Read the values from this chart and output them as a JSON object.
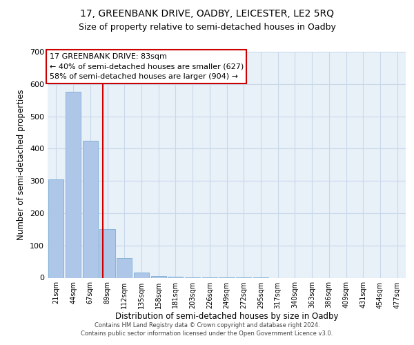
{
  "title": "17, GREENBANK DRIVE, OADBY, LEICESTER, LE2 5RQ",
  "subtitle": "Size of property relative to semi-detached houses in Oadby",
  "xlabel": "Distribution of semi-detached houses by size in Oadby",
  "ylabel": "Number of semi-detached properties",
  "categories": [
    "21sqm",
    "44sqm",
    "67sqm",
    "89sqm",
    "112sqm",
    "135sqm",
    "158sqm",
    "181sqm",
    "203sqm",
    "226sqm",
    "249sqm",
    "272sqm",
    "295sqm",
    "317sqm",
    "340sqm",
    "363sqm",
    "386sqm",
    "409sqm",
    "431sqm",
    "454sqm",
    "477sqm"
  ],
  "values": [
    305,
    575,
    425,
    150,
    60,
    15,
    5,
    3,
    2,
    1,
    1,
    1,
    1,
    0,
    0,
    0,
    0,
    0,
    0,
    0,
    0
  ],
  "bar_color": "#aec6e8",
  "bar_edge_color": "#7aadd4",
  "grid_color": "#c8d8ea",
  "bg_color": "#e8f0f8",
  "vline_x": 2.75,
  "vline_color": "#cc0000",
  "annotation_text": "17 GREENBANK DRIVE: 83sqm\n← 40% of semi-detached houses are smaller (627)\n58% of semi-detached houses are larger (904) →",
  "annotation_box_color": "#cc0000",
  "ylim": [
    0,
    700
  ],
  "yticks": [
    0,
    100,
    200,
    300,
    400,
    500,
    600,
    700
  ],
  "footer": "Contains HM Land Registry data © Crown copyright and database right 2024.\nContains public sector information licensed under the Open Government Licence v3.0.",
  "title_fontsize": 10,
  "subtitle_fontsize": 9,
  "annotation_fontsize": 8,
  "footer_fontsize": 6
}
